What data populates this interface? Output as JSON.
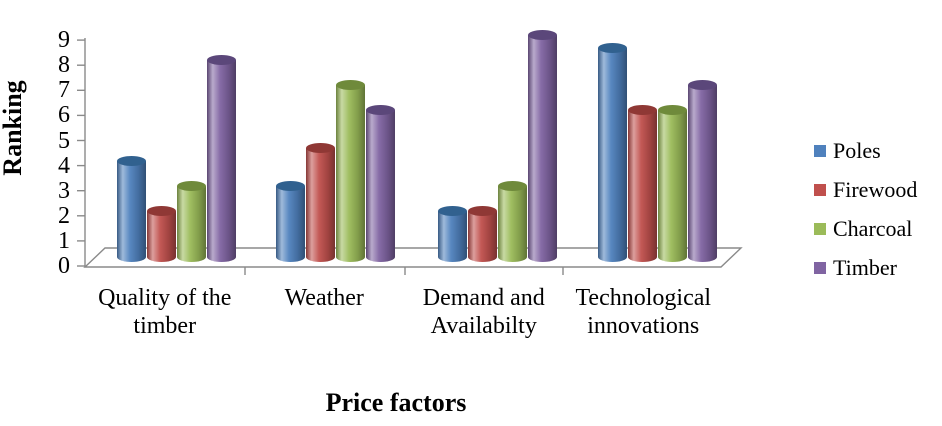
{
  "chart_data": {
    "type": "bar",
    "variant": "3d-cylinder",
    "title": "",
    "xlabel": "Price factors",
    "ylabel": "Ranking",
    "ylim": [
      0,
      9
    ],
    "yticks": [
      0,
      1,
      2,
      3,
      4,
      5,
      6,
      7,
      8,
      9
    ],
    "grid": false,
    "legend_position": "right",
    "background_color": "#ffffff",
    "axis_color": "#8a8a8a",
    "text_color": "#000000",
    "categories": [
      "Quality of the timber",
      "Weather",
      "Demand and Availabilty",
      "Technological innovations"
    ],
    "series": [
      {
        "name": "Poles",
        "color": "#4F81BD",
        "top_color": "#31618F",
        "values": [
          4,
          3,
          2,
          8.5
        ]
      },
      {
        "name": "Firewood",
        "color": "#C0504D",
        "top_color": "#8F3835",
        "values": [
          2,
          4.5,
          2,
          6
        ]
      },
      {
        "name": "Charcoal",
        "color": "#9BBB59",
        "top_color": "#6F8A3B",
        "values": [
          3,
          7,
          3,
          6
        ]
      },
      {
        "name": "Timber",
        "color": "#8064A2",
        "top_color": "#5B477A",
        "values": [
          8,
          6,
          9,
          7
        ]
      }
    ]
  }
}
